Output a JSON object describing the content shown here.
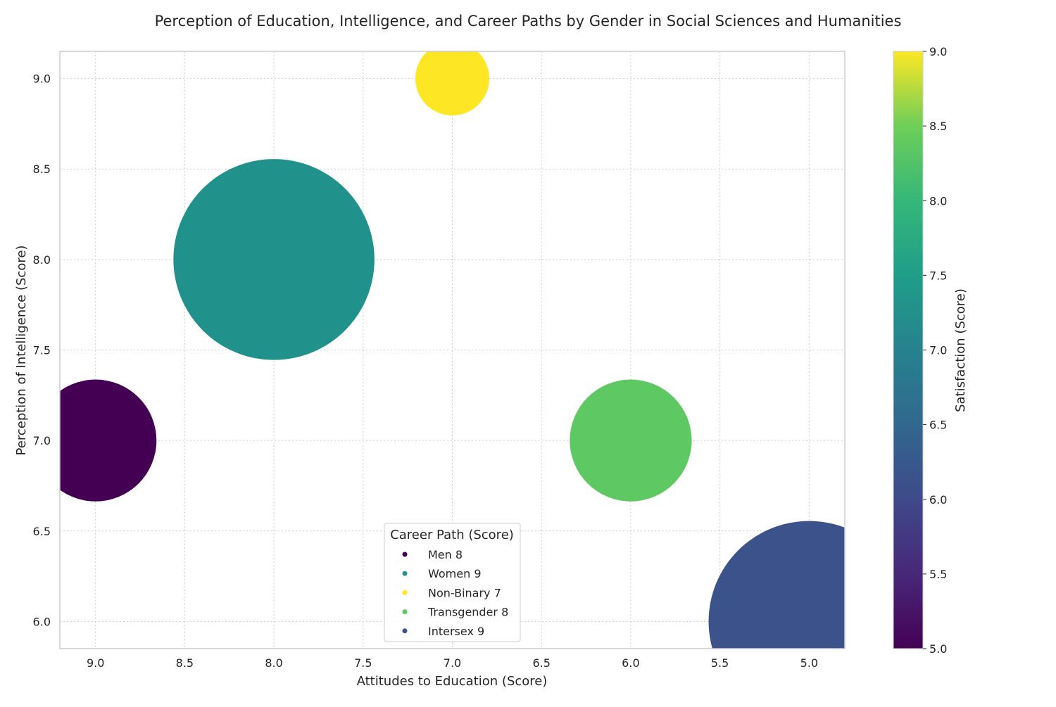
{
  "chart_data": {
    "type": "scatter",
    "title": "Perception of Education, Intelligence, and Career Paths by Gender in Social Sciences and Humanities",
    "xlabel": "Attitudes to Education (Score)",
    "ylabel": "Perception of Intelligence (Score)",
    "colorbar_label": "Satisfaction (Score)",
    "xlim": [
      9.2,
      4.8
    ],
    "ylim": [
      5.85,
      9.15
    ],
    "x_inverted": true,
    "x_ticks": [
      9.0,
      8.5,
      8.0,
      7.5,
      7.0,
      6.5,
      6.0,
      5.5,
      5.0
    ],
    "y_ticks": [
      6.0,
      6.5,
      7.0,
      7.5,
      8.0,
      8.5,
      9.0
    ],
    "colorbar_range": [
      5.0,
      9.0
    ],
    "colorbar_ticks": [
      5.0,
      5.5,
      6.0,
      6.5,
      7.0,
      7.5,
      8.0,
      8.5,
      9.0
    ],
    "colormap": "viridis",
    "grid": true,
    "legend_title": "Career Path (Score)",
    "legend_position": "lower-center",
    "points": [
      {
        "label": "Men 8",
        "x": 9,
        "y": 7,
        "satisfaction": 5,
        "bubble_size": 8,
        "color": "#440154"
      },
      {
        "label": "Women 9",
        "x": 8,
        "y": 8,
        "satisfaction": 7,
        "bubble_size": 9,
        "color": "#21918c"
      },
      {
        "label": "Non-Binary 7",
        "x": 7,
        "y": 9,
        "satisfaction": 9,
        "bubble_size": 7,
        "color": "#fde725"
      },
      {
        "label": "Transgender 8",
        "x": 6,
        "y": 7,
        "satisfaction": 8,
        "bubble_size": 8,
        "color": "#5ec962"
      },
      {
        "label": "Intersex 9",
        "x": 5,
        "y": 6,
        "satisfaction": 6,
        "bubble_size": 9,
        "color": "#3b528b"
      }
    ]
  }
}
